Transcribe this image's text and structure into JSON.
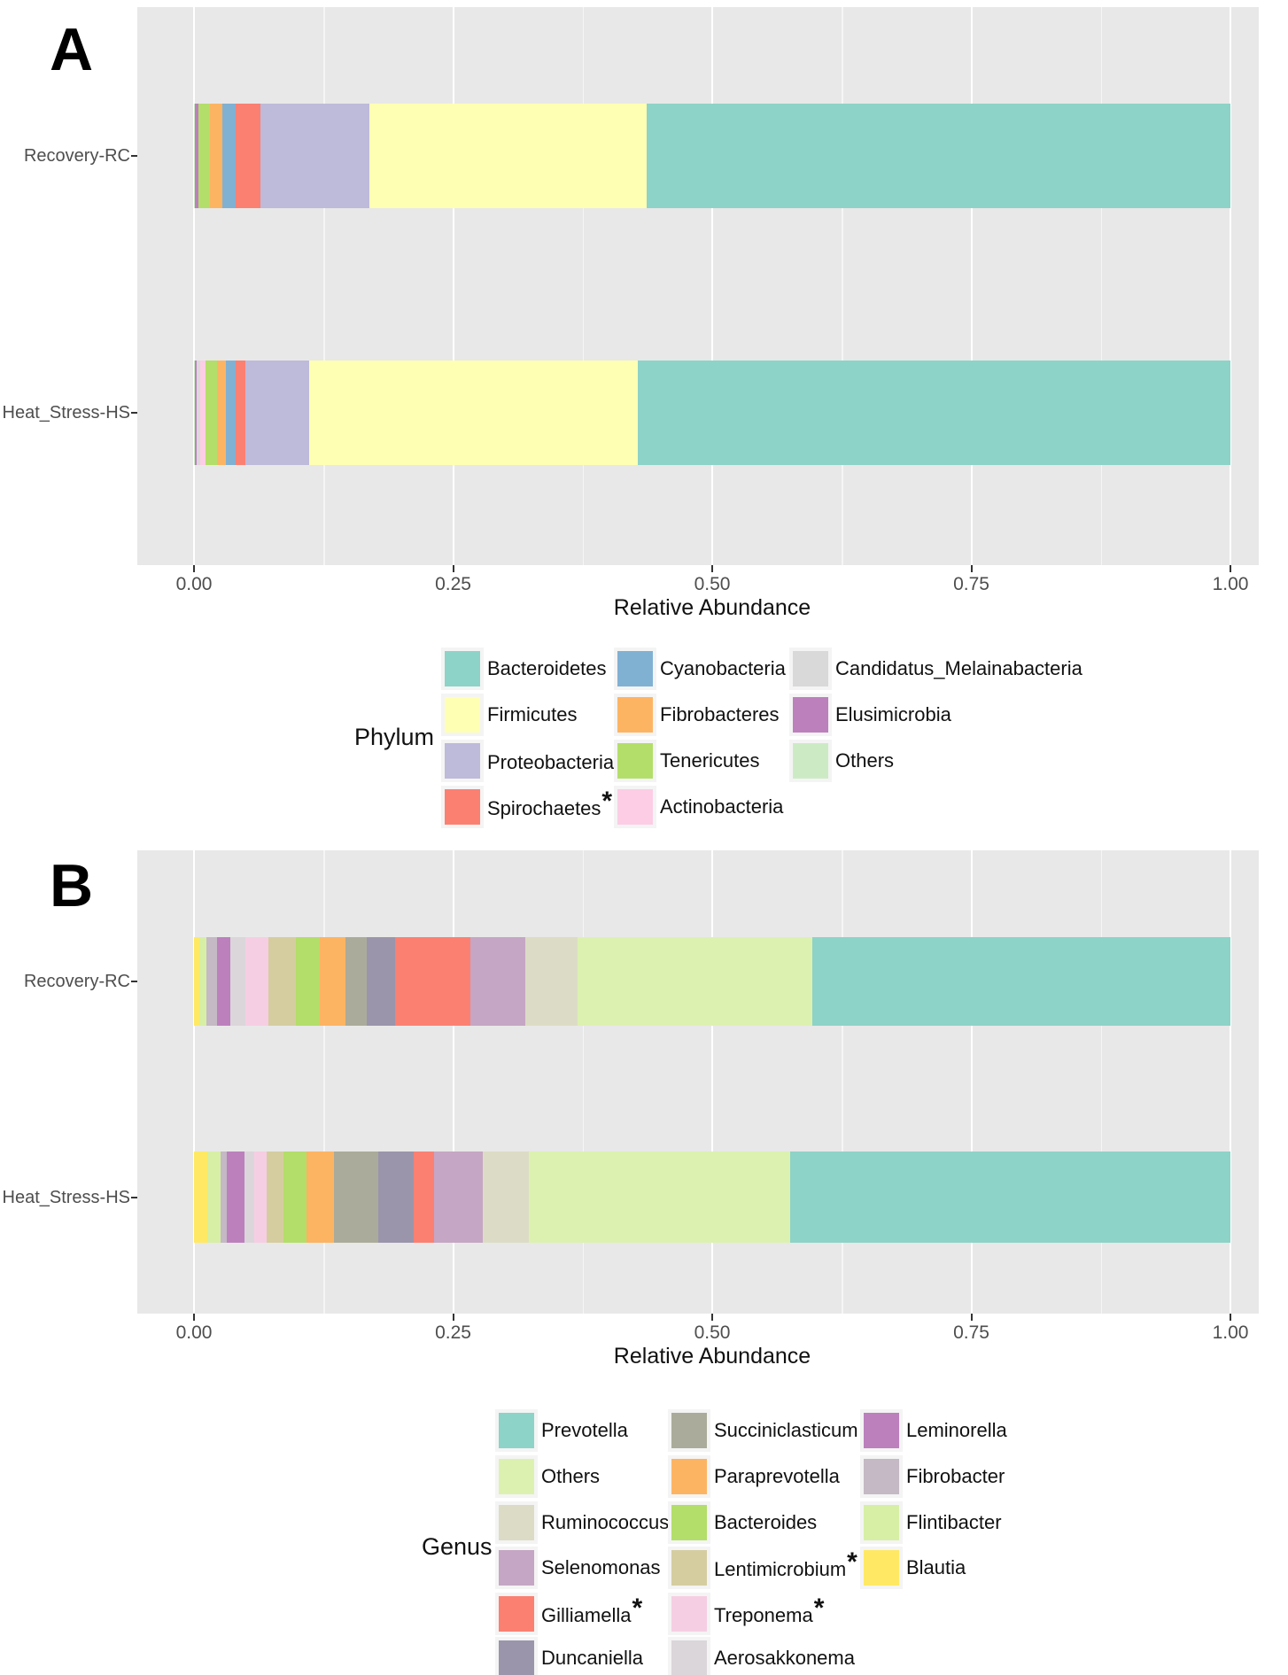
{
  "figure": {
    "background": "#ffffff",
    "panel_background": "#e8e8e8",
    "grid_major_color": "#ffffff",
    "tick_text_color": "#4e4e4e",
    "star_marker": "*"
  },
  "chart_data": [
    {
      "panel_label": "A",
      "type": "bar",
      "variant": "horizontal_stacked",
      "xlabel": "Relative Abundance",
      "xlim": [
        0,
        1
      ],
      "x_ticks": [
        "0.00",
        "0.25",
        "0.50",
        "0.75",
        "1.00"
      ],
      "grid": "major+minor",
      "categories": [
        "Recovery-RC",
        "Heat_Stress-HS"
      ],
      "legend_title": "Phylum",
      "legend_position": "bottom",
      "stack_order": "left-to-right as listed",
      "series": [
        {
          "name": "Others",
          "color": "#CCEBC5",
          "values": [
            0.001,
            0.001
          ]
        },
        {
          "name": "Elusimicrobia",
          "color": "#BC80BD",
          "values": [
            0.003,
            0.002
          ]
        },
        {
          "name": "Candidatus_Melainabacteria",
          "color": "#D9D9D9",
          "values": [
            0.0,
            0.003
          ]
        },
        {
          "name": "Actinobacteria",
          "color": "#FCCDE5",
          "values": [
            0.0,
            0.005
          ]
        },
        {
          "name": "Tenericutes",
          "color": "#B3DE69",
          "values": [
            0.011,
            0.011
          ]
        },
        {
          "name": "Fibrobacteres",
          "color": "#FDB462",
          "values": [
            0.012,
            0.009
          ]
        },
        {
          "name": "Cyanobacteria",
          "color": "#80B1D3",
          "values": [
            0.013,
            0.009
          ]
        },
        {
          "name": "Spirochaetes",
          "color": "#FB8072",
          "values": [
            0.024,
            0.01
          ],
          "starred": true
        },
        {
          "name": "Proteobacteria",
          "color": "#BEBADA",
          "values": [
            0.105,
            0.061
          ],
          "starred": true
        },
        {
          "name": "Firmicutes",
          "color": "#FFFFB3",
          "values": [
            0.268,
            0.317
          ]
        },
        {
          "name": "Bacteroidetes",
          "color": "#8DD3C7",
          "values": [
            0.563,
            0.572
          ]
        }
      ],
      "legend_columns": [
        [
          "Bacteroidetes",
          "Firmicutes",
          "Proteobacteria",
          "Spirochaetes"
        ],
        [
          "Cyanobacteria",
          "Fibrobacteres",
          "Tenericutes",
          "Actinobacteria"
        ],
        [
          "Candidatus_Melainabacteria",
          "Elusimicrobia",
          "Others"
        ]
      ]
    },
    {
      "panel_label": "B",
      "type": "bar",
      "variant": "horizontal_stacked",
      "xlabel": "Relative Abundance",
      "xlim": [
        0,
        1
      ],
      "x_ticks": [
        "0.00",
        "0.25",
        "0.50",
        "0.75",
        "1.00"
      ],
      "grid": "major+minor",
      "categories": [
        "Recovery-RC",
        "Heat_Stress-HS"
      ],
      "legend_title": "Genus",
      "legend_position": "bottom",
      "stack_order": "left-to-right as listed",
      "series": [
        {
          "name": "Blautia",
          "color": "#FFE964",
          "values": [
            0.005,
            0.013
          ]
        },
        {
          "name": "Flintibacter",
          "color": "#D7EFA5",
          "values": [
            0.007,
            0.013
          ]
        },
        {
          "name": "Fibrobacter",
          "color": "#C4B9C4",
          "values": [
            0.01,
            0.006
          ]
        },
        {
          "name": "Leminorella",
          "color": "#BC80BD",
          "values": [
            0.013,
            0.017
          ]
        },
        {
          "name": "Aerosakkonema",
          "color": "#DBD6DA",
          "values": [
            0.015,
            0.009
          ]
        },
        {
          "name": "Treponema",
          "color": "#F6CEE3",
          "values": [
            0.022,
            0.012
          ],
          "starred": true
        },
        {
          "name": "Lentimicrobium",
          "color": "#D5CDA0",
          "values": [
            0.026,
            0.016
          ],
          "starred": true
        },
        {
          "name": "Bacteroides",
          "color": "#B3DE69",
          "values": [
            0.023,
            0.023
          ]
        },
        {
          "name": "Paraprevotella",
          "color": "#FDB462",
          "values": [
            0.025,
            0.026
          ]
        },
        {
          "name": "Succiniclasticum",
          "color": "#ABAB9B",
          "values": [
            0.021,
            0.043
          ]
        },
        {
          "name": "Duncaniella",
          "color": "#9A95AB",
          "values": [
            0.027,
            0.034
          ]
        },
        {
          "name": "Gilliamella",
          "color": "#FB8072",
          "values": [
            0.073,
            0.02
          ],
          "starred": true
        },
        {
          "name": "Selenomonas",
          "color": "#C5A6C4",
          "values": [
            0.053,
            0.047
          ]
        },
        {
          "name": "Ruminococcus",
          "color": "#DCDCC6",
          "values": [
            0.05,
            0.044
          ]
        },
        {
          "name": "Others",
          "color": "#DCF1B0",
          "values": [
            0.227,
            0.252
          ]
        },
        {
          "name": "Prevotella",
          "color": "#8DD3C7",
          "values": [
            0.403,
            0.425
          ]
        }
      ],
      "legend_columns": [
        [
          "Prevotella",
          "Others",
          "Ruminococcus",
          "Selenomonas",
          "Gilliamella",
          "Duncaniella"
        ],
        [
          "Succiniclasticum",
          "Paraprevotella",
          "Bacteroides",
          "Lentimicrobium",
          "Treponema",
          "Aerosakkonema"
        ],
        [
          "Leminorella",
          "Fibrobacter",
          "Flintibacter",
          "Blautia"
        ]
      ]
    }
  ]
}
